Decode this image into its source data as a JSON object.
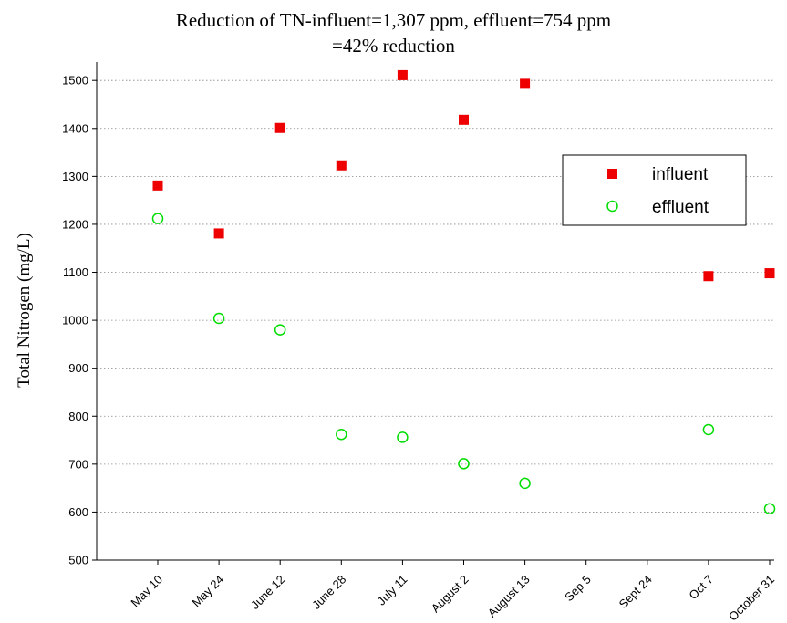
{
  "chart_data": {
    "type": "scatter",
    "title_line1": "Reduction of TN-influent=1,307 ppm, effluent=754 ppm",
    "title_line2": "=42% reduction",
    "ylabel": "Total Nitrogen (mg/L)",
    "xlabel": "",
    "ylim": [
      500,
      1520
    ],
    "yticks": [
      500,
      600,
      700,
      800,
      900,
      1000,
      1100,
      1200,
      1300,
      1400,
      1500
    ],
    "grid": true,
    "legend_position": "right",
    "categories": [
      "May 10",
      "May 24",
      "June 12",
      "June 28",
      "July 11",
      "August 2",
      "August 13",
      "Sep 5",
      "Sept 24",
      "Oct 7",
      "October 31"
    ],
    "series": [
      {
        "name": "influent",
        "marker": "filled-square",
        "color": "#ee0000",
        "values": [
          1281,
          1181,
          1401,
          1323,
          1511,
          1418,
          1493,
          null,
          null,
          1092,
          1098
        ]
      },
      {
        "name": "effluent",
        "marker": "open-circle",
        "color": "#00dd00",
        "values": [
          1212,
          1004,
          980,
          762,
          756,
          701,
          660,
          null,
          null,
          772,
          607
        ]
      }
    ]
  }
}
